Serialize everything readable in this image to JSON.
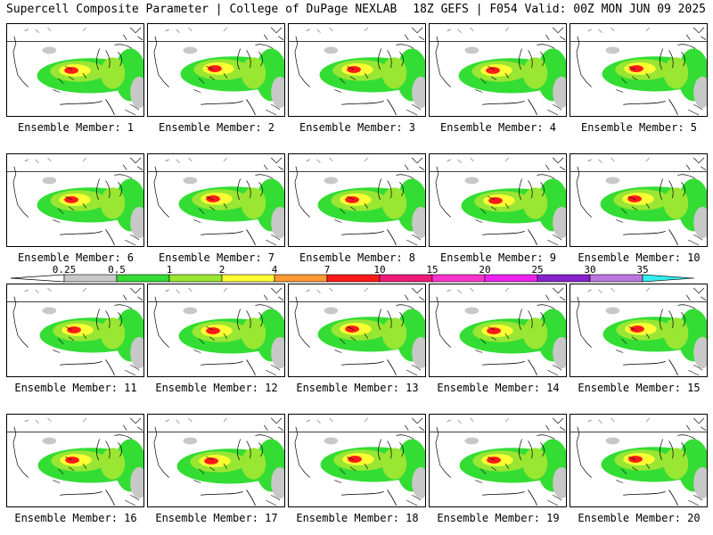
{
  "header": {
    "left": "Supercell Composite Parameter | College of DuPage NEXLAB",
    "right": "18Z GEFS | F054 Valid: 00Z MON JUN 09 2025"
  },
  "panel_label_prefix": "Ensemble Member: ",
  "members": [
    1,
    2,
    3,
    4,
    5,
    6,
    7,
    8,
    9,
    10,
    11,
    12,
    13,
    14,
    15,
    16,
    17,
    18,
    19,
    20
  ],
  "scale": {
    "ticks": [
      "0.25",
      "0.5",
      "1",
      "2",
      "4",
      "7",
      "10",
      "15",
      "20",
      "25",
      "30",
      "35"
    ],
    "colors": [
      "#c8c8c8",
      "#33dd33",
      "#99e633",
      "#ffff33",
      "#ff9933",
      "#ff1a1a",
      "#ee1a77",
      "#ff33cc",
      "#ee22ee",
      "#8822cc",
      "#bb77dd",
      "#33eeee"
    ]
  }
}
